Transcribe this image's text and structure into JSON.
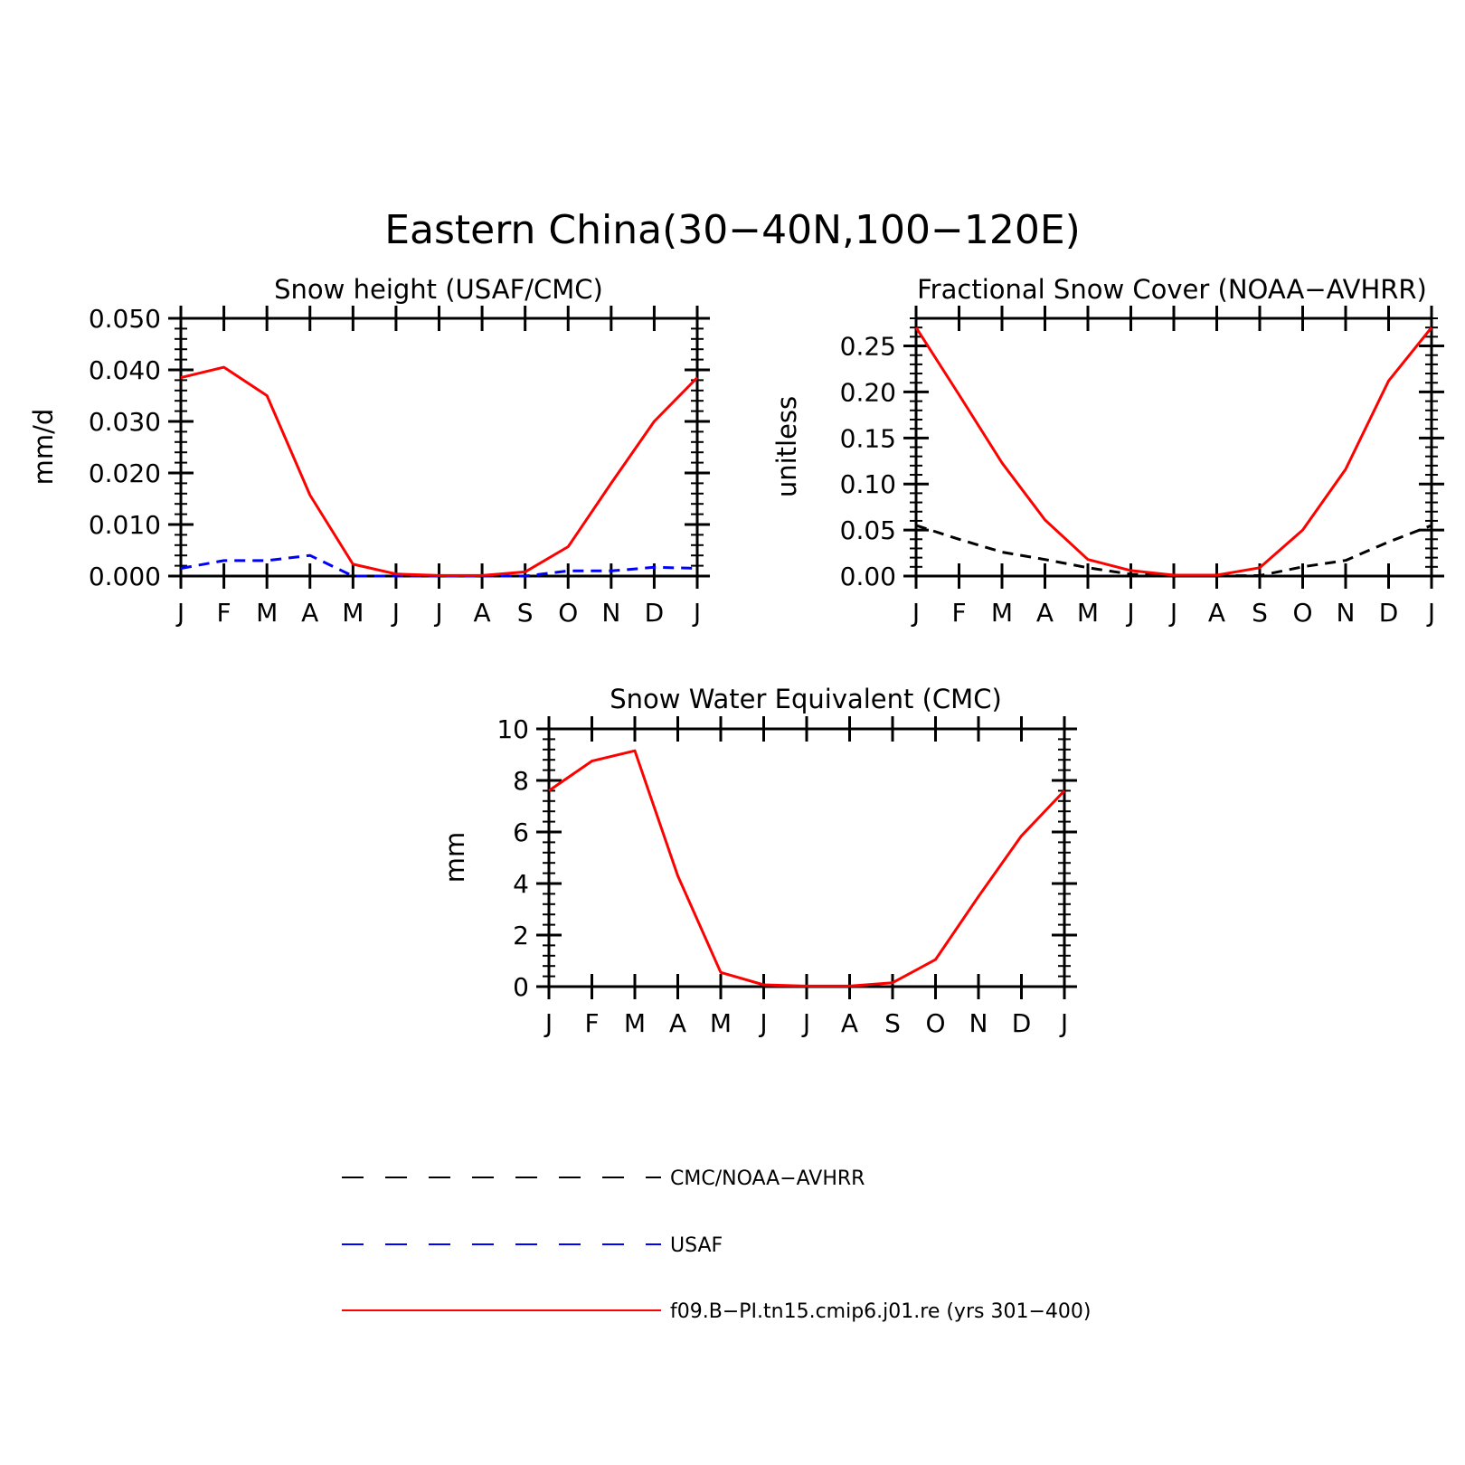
{
  "figure": {
    "title": "Eastern China(30−40N,100−120E)"
  },
  "colors": {
    "obs_black": "#000000",
    "obs_blue": "#0000ff",
    "model_red": "#ff0000"
  },
  "legend": {
    "items": [
      {
        "label": "CMC/NOAA−AVHRR",
        "color": "#000000",
        "style": "dashed"
      },
      {
        "label": "USAF",
        "color": "#0000ff",
        "style": "dashed"
      },
      {
        "label": "f09.B−PI.tn15.cmip6.j01.re (yrs 301−400)",
        "color": "#ff0000",
        "style": "solid"
      }
    ]
  },
  "chart_data": [
    {
      "type": "line",
      "title": "Snow height (USAF/CMC)",
      "xlabel": "",
      "ylabel": "mm/d",
      "categories": [
        "J",
        "F",
        "M",
        "A",
        "M",
        "J",
        "J",
        "A",
        "S",
        "O",
        "N",
        "D",
        "J"
      ],
      "ylim": [
        0,
        0.05
      ],
      "yticks": [
        "0.000",
        "0.010",
        "0.020",
        "0.030",
        "0.040",
        "0.050"
      ],
      "series": [
        {
          "name": "CMC/NOAA−AVHRR",
          "color": "#000000",
          "style": "dashed",
          "values": [
            0,
            0,
            0,
            0,
            0,
            0,
            0,
            0,
            0,
            0,
            0,
            0,
            0
          ]
        },
        {
          "name": "USAF",
          "color": "#0000ff",
          "style": "dashed",
          "values": [
            0.0015,
            0.003,
            0.003,
            0.004,
            0,
            0,
            0,
            0,
            0,
            0.001,
            0.001,
            0.0017,
            0.0015
          ]
        },
        {
          "name": "f09.B−PI.tn15.cmip6.j01.re (yrs 301−400)",
          "color": "#ff0000",
          "style": "solid",
          "values": [
            0.0385,
            0.0405,
            0.035,
            0.0157,
            0.0023,
            0.0004,
            0.0001,
            0.0001,
            0.0008,
            0.0057,
            0.018,
            0.03,
            0.0385
          ]
        }
      ]
    },
    {
      "type": "line",
      "title": "Fractional Snow Cover (NOAA−AVHRR)",
      "xlabel": "",
      "ylabel": "unitless",
      "categories": [
        "J",
        "F",
        "M",
        "A",
        "M",
        "J",
        "J",
        "A",
        "S",
        "O",
        "N",
        "D",
        "J"
      ],
      "ylim": [
        0,
        0.28
      ],
      "yticks": [
        "0.00",
        "0.05",
        "0.10",
        "0.15",
        "0.20",
        "0.25"
      ],
      "series": [
        {
          "name": "CMC/NOAA−AVHRR",
          "color": "#000000",
          "style": "dashed",
          "values": [
            0.055,
            0.04,
            0.026,
            0.018,
            0.009,
            0.002,
            0.0005,
            0.0002,
            0.0005,
            0.01,
            0.017,
            0.037,
            0.055
          ]
        },
        {
          "name": "f09.B−PI.tn15.cmip6.j01.re (yrs 301−400)",
          "color": "#ff0000",
          "style": "solid",
          "values": [
            0.27,
            0.197,
            0.123,
            0.061,
            0.018,
            0.006,
            0.001,
            0.001,
            0.009,
            0.05,
            0.116,
            0.212,
            0.27
          ]
        }
      ]
    },
    {
      "type": "line",
      "title": "Snow Water Equivalent (CMC)",
      "xlabel": "",
      "ylabel": "mm",
      "categories": [
        "J",
        "F",
        "M",
        "A",
        "M",
        "J",
        "J",
        "A",
        "S",
        "O",
        "N",
        "D",
        "J"
      ],
      "ylim": [
        0,
        10
      ],
      "yticks": [
        "0",
        "2",
        "4",
        "6",
        "8",
        "10"
      ],
      "series": [
        {
          "name": "CMC/NOAA−AVHRR",
          "color": "#000000",
          "style": "dashed",
          "values": [
            0,
            0,
            0,
            0,
            0,
            0,
            0,
            0,
            0,
            0,
            0,
            0,
            0
          ]
        },
        {
          "name": "f09.B−PI.tn15.cmip6.j01.re (yrs 301−400)",
          "color": "#ff0000",
          "style": "solid",
          "values": [
            7.6,
            8.75,
            9.15,
            4.3,
            0.55,
            0.07,
            0.02,
            0.02,
            0.15,
            1.05,
            3.5,
            5.85,
            7.6
          ]
        }
      ]
    }
  ]
}
